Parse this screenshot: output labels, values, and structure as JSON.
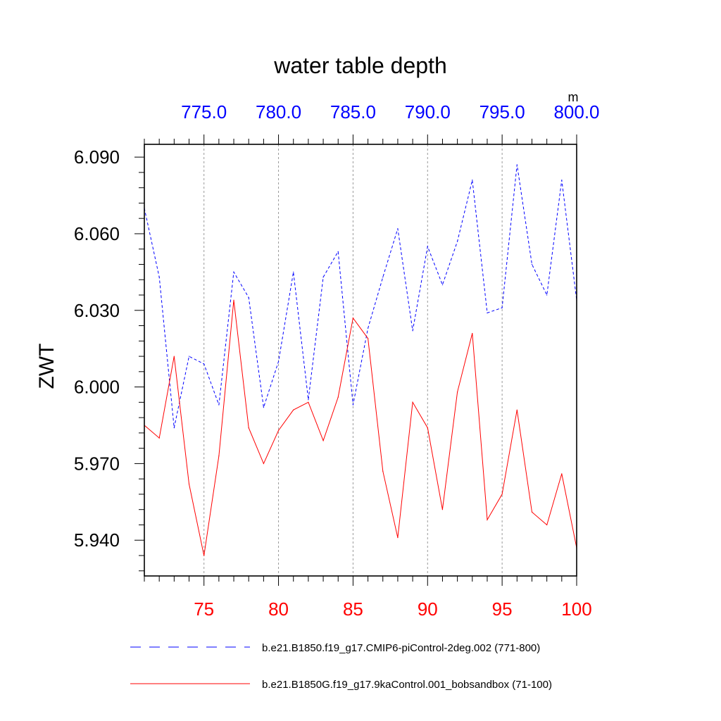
{
  "chart_data": {
    "type": "line",
    "title": "water table depth",
    "ylabel": "ZWT",
    "units_label": "m",
    "ylim": [
      5.926,
      6.095
    ],
    "yticks": [
      {
        "value": 5.94,
        "label": "5.940"
      },
      {
        "value": 5.97,
        "label": "5.970"
      },
      {
        "value": 6.0,
        "label": "6.000"
      },
      {
        "value": 6.03,
        "label": "6.030"
      },
      {
        "value": 6.06,
        "label": "6.060"
      },
      {
        "value": 6.09,
        "label": "6.090"
      }
    ],
    "x_bottom": {
      "range": [
        71,
        100
      ],
      "ticks": [
        {
          "value": 75,
          "label": "75"
        },
        {
          "value": 80,
          "label": "80"
        },
        {
          "value": 85,
          "label": "85"
        },
        {
          "value": 90,
          "label": "90"
        },
        {
          "value": 95,
          "label": "95"
        },
        {
          "value": 100,
          "label": "100"
        }
      ],
      "color": "#ff0000"
    },
    "x_top": {
      "range": [
        771,
        800
      ],
      "ticks": [
        {
          "value": 775,
          "label": "775.0"
        },
        {
          "value": 780,
          "label": "780.0"
        },
        {
          "value": 785,
          "label": "785.0"
        },
        {
          "value": 790,
          "label": "790.0"
        },
        {
          "value": 795,
          "label": "795.0"
        },
        {
          "value": 800,
          "label": "800.0"
        }
      ],
      "color": "#0000ff"
    },
    "grid_x": true,
    "series": [
      {
        "name": "b.e21.B1850.f19_g17.CMIP6-piControl-2deg.002 (771-800)",
        "color": "#0000ff",
        "dash": "dashed",
        "x": [
          771,
          772,
          773,
          774,
          775,
          776,
          777,
          778,
          779,
          780,
          781,
          782,
          783,
          784,
          785,
          786,
          787,
          788,
          789,
          790,
          791,
          792,
          793,
          794,
          795,
          796,
          797,
          798,
          799,
          800
        ],
        "values": [
          6.07,
          6.043,
          5.984,
          6.012,
          6.009,
          5.993,
          6.045,
          6.035,
          5.992,
          6.01,
          6.045,
          5.995,
          6.043,
          6.053,
          5.993,
          6.023,
          6.043,
          6.062,
          6.022,
          6.055,
          6.04,
          6.057,
          6.081,
          6.029,
          6.031,
          6.087,
          6.048,
          6.036,
          6.081,
          6.034
        ]
      },
      {
        "name": "b.e21.B1850G.f19_g17.9kaControl.001_bobsandbox (71-100)",
        "color": "#ff0000",
        "dash": "solid",
        "x": [
          71,
          72,
          73,
          74,
          75,
          76,
          77,
          78,
          79,
          80,
          81,
          82,
          83,
          84,
          85,
          86,
          87,
          88,
          89,
          90,
          91,
          92,
          93,
          94,
          95,
          96,
          97,
          98,
          99,
          100
        ],
        "values": [
          5.985,
          5.98,
          6.012,
          5.962,
          5.934,
          5.973,
          6.034,
          5.984,
          5.97,
          5.983,
          5.991,
          5.994,
          5.979,
          5.996,
          6.027,
          6.019,
          5.967,
          5.941,
          5.994,
          5.984,
          5.952,
          5.998,
          6.021,
          5.948,
          5.958,
          5.991,
          5.951,
          5.946,
          5.966,
          5.937
        ]
      }
    ]
  }
}
